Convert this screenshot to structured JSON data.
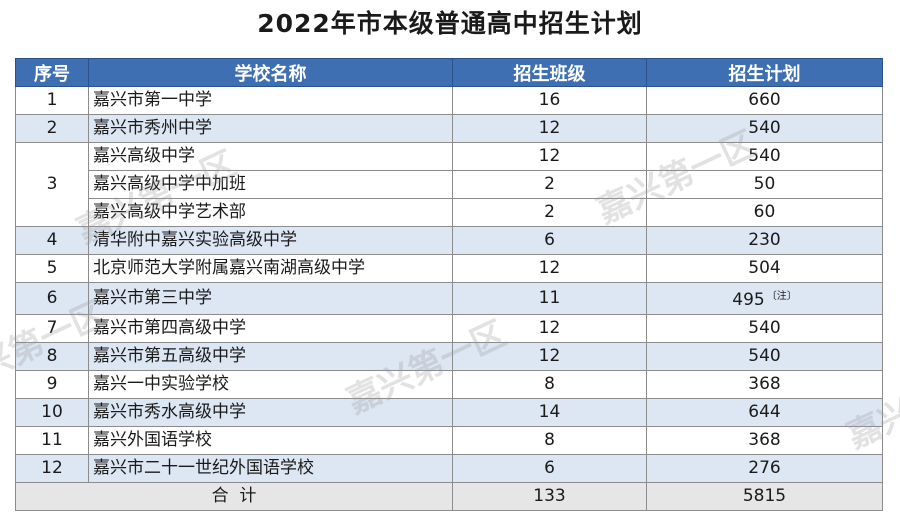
{
  "title": "2022年市本级普通高中招生计划",
  "headers": {
    "seq": "序号",
    "school": "学校名称",
    "classes": "招生班级",
    "plan": "招生计划"
  },
  "rows": [
    {
      "seq": "1",
      "school": "嘉兴市第一中学",
      "classes": "16",
      "plan": "660"
    },
    {
      "seq": "2",
      "school": "嘉兴市秀州中学",
      "classes": "12",
      "plan": "540"
    },
    {
      "seq": "3",
      "school": "嘉兴高级中学",
      "classes": "12",
      "plan": "540"
    },
    {
      "seq": "",
      "school": "嘉兴高级中学中加班",
      "classes": "2",
      "plan": "50"
    },
    {
      "seq": "",
      "school": "嘉兴高级中学艺术部",
      "classes": "2",
      "plan": "60"
    },
    {
      "seq": "4",
      "school": "清华附中嘉兴实验高级中学",
      "classes": "6",
      "plan": "230"
    },
    {
      "seq": "5",
      "school": "北京师范大学附属嘉兴南湖高级中学",
      "classes": "12",
      "plan": "504"
    },
    {
      "seq": "6",
      "school": "嘉兴市第三中学",
      "classes": "11",
      "plan": "495",
      "note": "〔注〕"
    },
    {
      "seq": "7",
      "school": "嘉兴市第四高级中学",
      "classes": "12",
      "plan": "540"
    },
    {
      "seq": "8",
      "school": "嘉兴市第五高级中学",
      "classes": "12",
      "plan": "540"
    },
    {
      "seq": "9",
      "school": "嘉兴一中实验学校",
      "classes": "8",
      "plan": "368"
    },
    {
      "seq": "10",
      "school": "嘉兴市秀水高级中学",
      "classes": "14",
      "plan": "644"
    },
    {
      "seq": "11",
      "school": "嘉兴外国语学校",
      "classes": "8",
      "plan": "368"
    },
    {
      "seq": "12",
      "school": "嘉兴市二十一世纪外国语学校",
      "classes": "6",
      "plan": "276"
    }
  ],
  "total": {
    "label": "合  计",
    "classes": "133",
    "plan": "5815"
  },
  "watermark": "嘉兴第一区"
}
